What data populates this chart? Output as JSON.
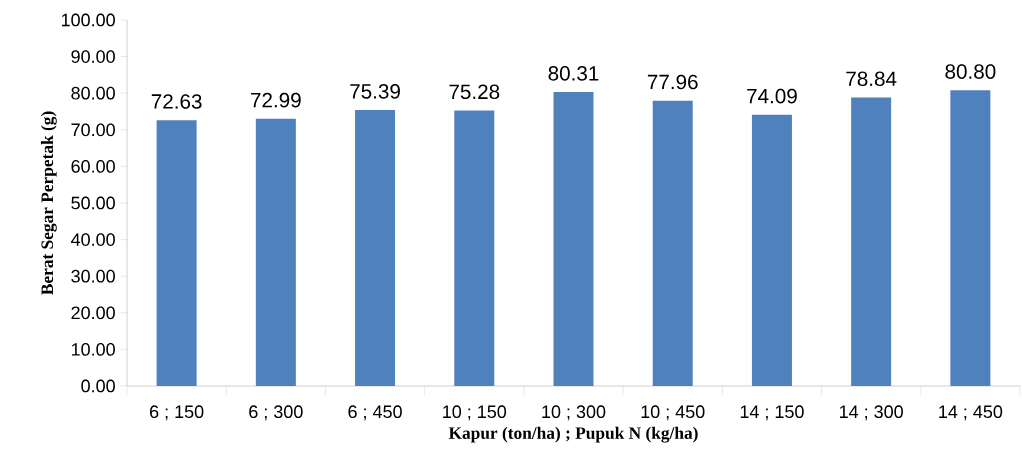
{
  "chart_data": {
    "type": "bar",
    "xlabel": "Kapur (ton/ha) ; Pupuk N (kg/ha)",
    "ylabel": "Berat Segar Perpetak (g)",
    "categories": [
      "6 ; 150",
      "6 ; 300",
      "6 ; 450",
      "10 ; 150",
      "10 ; 300",
      "10 ; 450",
      "14 ; 150",
      "14 ; 300",
      "14 ; 450"
    ],
    "values": [
      72.63,
      72.99,
      75.39,
      75.28,
      80.31,
      77.96,
      74.09,
      78.84,
      80.8
    ],
    "value_labels": [
      "72.63",
      "72.99",
      "75.39",
      "75.28",
      "80.31",
      "77.96",
      "74.09",
      "78.84",
      "80.80"
    ],
    "color": "#4f81bd",
    "ylim": [
      0,
      100
    ],
    "yticks": [
      {
        "value": 0,
        "label": "0.00"
      },
      {
        "value": 10,
        "label": "10.00"
      },
      {
        "value": 20,
        "label": "20.00"
      },
      {
        "value": 30,
        "label": "30.00"
      },
      {
        "value": 40,
        "label": "40.00"
      },
      {
        "value": 50,
        "label": "50.00"
      },
      {
        "value": 60,
        "label": "60.00"
      },
      {
        "value": 70,
        "label": "70.00"
      },
      {
        "value": 80,
        "label": "80.00"
      },
      {
        "value": 90,
        "label": "90.00"
      },
      {
        "value": 100,
        "label": "100.00"
      }
    ],
    "grid": false
  }
}
